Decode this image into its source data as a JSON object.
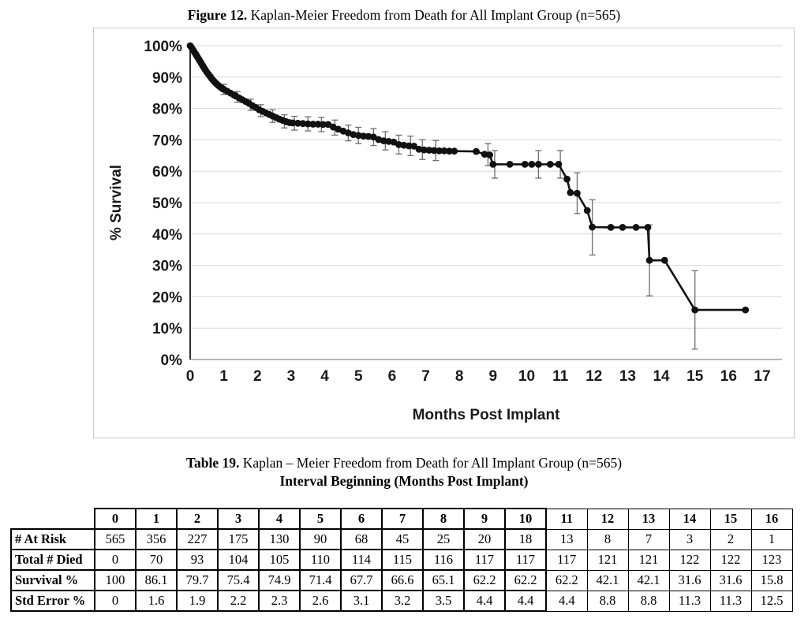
{
  "figure": {
    "label": "Figure 12.",
    "title": " Kaplan-Meier Freedom from Death for All Implant Group (n=565)"
  },
  "chart_data": {
    "type": "line",
    "title": "Figure 12. Kaplan-Meier Freedom from Death for All Implant Group (n=565)",
    "xlabel": "Months Post Implant",
    "ylabel": "% Survival",
    "xlim": [
      0,
      17
    ],
    "ylim": [
      0,
      100
    ],
    "grid": "horizontal",
    "legend": "none",
    "xticks": [
      "0",
      "1",
      "2",
      "3",
      "4",
      "5",
      "6",
      "7",
      "8",
      "9",
      "10",
      "11",
      "12",
      "13",
      "14",
      "15",
      "16",
      "17"
    ],
    "yticks": [
      {
        "v": 0,
        "label": "0%"
      },
      {
        "v": 10,
        "label": "10%"
      },
      {
        "v": 20,
        "label": "20%"
      },
      {
        "v": 30,
        "label": "30%"
      },
      {
        "v": 40,
        "label": "40%"
      },
      {
        "v": 50,
        "label": "50%"
      },
      {
        "v": 60,
        "label": "60%"
      },
      {
        "v": 70,
        "label": "70%"
      },
      {
        "v": 80,
        "label": "80%"
      },
      {
        "v": 90,
        "label": "90%"
      },
      {
        "v": 100,
        "label": "100%"
      }
    ],
    "monthly_summary": {
      "months": [
        0,
        1,
        2,
        3,
        4,
        5,
        6,
        7,
        8,
        9,
        10,
        11,
        12,
        13,
        14,
        15,
        16
      ],
      "survival_pct": [
        100,
        86.1,
        79.7,
        75.4,
        74.9,
        71.4,
        67.7,
        66.6,
        65.1,
        62.2,
        62.2,
        62.2,
        42.1,
        42.1,
        31.6,
        31.6,
        15.8
      ],
      "std_error_pct": [
        0,
        1.6,
        1.9,
        2.2,
        2.3,
        2.6,
        3.1,
        3.2,
        3.5,
        4.4,
        4.4,
        4.4,
        8.8,
        8.8,
        11.3,
        11.3,
        12.5
      ]
    },
    "series": [
      {
        "name": "Freedom from Death (All Implant Group)",
        "color": "#111111",
        "marker": "circle",
        "points": [
          [
            0,
            100
          ],
          [
            0.05,
            99.3
          ],
          [
            0.09,
            98.6
          ],
          [
            0.13,
            97.9
          ],
          [
            0.17,
            97.2
          ],
          [
            0.21,
            96.5
          ],
          [
            0.25,
            95.8
          ],
          [
            0.29,
            95.1
          ],
          [
            0.33,
            94.4
          ],
          [
            0.37,
            93.7
          ],
          [
            0.41,
            93
          ],
          [
            0.45,
            92.3
          ],
          [
            0.5,
            91.5
          ],
          [
            0.55,
            90.8
          ],
          [
            0.6,
            90.1
          ],
          [
            0.65,
            89.4
          ],
          [
            0.7,
            88.8
          ],
          [
            0.75,
            88.2
          ],
          [
            0.8,
            87.7
          ],
          [
            0.85,
            87.2
          ],
          [
            0.9,
            86.8
          ],
          [
            0.95,
            86.4
          ],
          [
            1,
            86.1
          ],
          [
            1.1,
            85.5
          ],
          [
            1.2,
            84.9
          ],
          [
            1.3,
            84.3
          ],
          [
            1.35,
            84
          ],
          [
            1.45,
            83.4
          ],
          [
            1.55,
            82.8
          ],
          [
            1.65,
            82.2
          ],
          [
            1.75,
            81.6
          ],
          [
            1.85,
            80.9
          ],
          [
            1.95,
            80.3
          ],
          [
            2.05,
            79.6
          ],
          [
            2.15,
            79.1
          ],
          [
            2.25,
            78.6
          ],
          [
            2.35,
            78.1
          ],
          [
            2.45,
            77.6
          ],
          [
            2.55,
            77.1
          ],
          [
            2.65,
            76.6
          ],
          [
            2.75,
            76.2
          ],
          [
            2.85,
            75.8
          ],
          [
            2.95,
            75.5
          ],
          [
            3.05,
            75.4
          ],
          [
            3.2,
            75.3
          ],
          [
            3.35,
            75.2
          ],
          [
            3.5,
            75.1
          ],
          [
            3.65,
            75
          ],
          [
            3.8,
            75
          ],
          [
            3.95,
            74.9
          ],
          [
            4.1,
            74.9
          ],
          [
            4.25,
            74.1
          ],
          [
            4.4,
            73.4
          ],
          [
            4.55,
            72.8
          ],
          [
            4.7,
            72.2
          ],
          [
            4.85,
            71.7
          ],
          [
            5,
            71.4
          ],
          [
            5.15,
            71.2
          ],
          [
            5.3,
            71.1
          ],
          [
            5.45,
            70.9
          ],
          [
            5.6,
            70.1
          ],
          [
            5.75,
            69.7
          ],
          [
            5.9,
            69.5
          ],
          [
            6.05,
            69.3
          ],
          [
            6.2,
            68.5
          ],
          [
            6.35,
            68.3
          ],
          [
            6.5,
            68.1
          ],
          [
            6.65,
            68
          ],
          [
            6.8,
            67
          ],
          [
            6.95,
            66.8
          ],
          [
            7.1,
            66.7
          ],
          [
            7.25,
            66.6
          ],
          [
            7.4,
            66.5
          ],
          [
            7.55,
            66.5
          ],
          [
            7.7,
            66.4
          ],
          [
            7.85,
            66.4
          ],
          [
            8.5,
            66.3
          ],
          [
            8.75,
            65.4
          ],
          [
            8.9,
            65.2
          ],
          [
            9,
            62.2
          ],
          [
            9.5,
            62.2
          ],
          [
            9.95,
            62.2
          ],
          [
            10.15,
            62.2
          ],
          [
            10.35,
            62.2
          ],
          [
            10.7,
            62.2
          ],
          [
            10.95,
            62.2
          ],
          [
            11.2,
            57.5
          ],
          [
            11.3,
            53.2
          ],
          [
            11.5,
            53
          ],
          [
            11.8,
            47.5
          ],
          [
            11.95,
            42.2
          ],
          [
            12.5,
            42.1
          ],
          [
            12.85,
            42.1
          ],
          [
            13.25,
            42.1
          ],
          [
            13.6,
            42.1
          ],
          [
            13.65,
            31.6
          ],
          [
            14.1,
            31.6
          ],
          [
            15,
            15.8
          ],
          [
            16.5,
            15.8
          ]
        ]
      }
    ],
    "error_bars": [
      {
        "x": 1,
        "y": 86.1,
        "e": 1.6
      },
      {
        "x": 1.4,
        "y": 83.7,
        "e": 1.7
      },
      {
        "x": 1.8,
        "y": 81.2,
        "e": 1.8
      },
      {
        "x": 2.1,
        "y": 79.3,
        "e": 1.9
      },
      {
        "x": 2.45,
        "y": 77.6,
        "e": 2
      },
      {
        "x": 2.8,
        "y": 75.9,
        "e": 2.1
      },
      {
        "x": 3.1,
        "y": 75.3,
        "e": 2.2
      },
      {
        "x": 3.5,
        "y": 75.1,
        "e": 2.25
      },
      {
        "x": 3.9,
        "y": 74.9,
        "e": 2.3
      },
      {
        "x": 4.3,
        "y": 73.9,
        "e": 2.4
      },
      {
        "x": 4.7,
        "y": 72.2,
        "e": 2.5
      },
      {
        "x": 5,
        "y": 71.4,
        "e": 2.6
      },
      {
        "x": 5.45,
        "y": 70.9,
        "e": 2.7
      },
      {
        "x": 5.8,
        "y": 69.7,
        "e": 2.9
      },
      {
        "x": 6.2,
        "y": 68.5,
        "e": 3
      },
      {
        "x": 6.55,
        "y": 68.1,
        "e": 3.1
      },
      {
        "x": 6.9,
        "y": 66.9,
        "e": 3.15
      },
      {
        "x": 7.3,
        "y": 66.6,
        "e": 3.2
      },
      {
        "x": 8.85,
        "y": 65.3,
        "e": 3.5
      },
      {
        "x": 9.05,
        "y": 62.2,
        "e": 4.4
      },
      {
        "x": 10.35,
        "y": 62.2,
        "e": 4.4
      },
      {
        "x": 11,
        "y": 62.2,
        "e": 4.4
      },
      {
        "x": 11.5,
        "y": 53,
        "e": 6.5
      },
      {
        "x": 11.95,
        "y": 42.1,
        "e": 8.8
      },
      {
        "x": 13.65,
        "y": 31.6,
        "e": 11.3
      },
      {
        "x": 15,
        "y": 15.8,
        "e": 12.5
      }
    ]
  },
  "table": {
    "caption_label": "Table 19.",
    "caption": " Kaplan – Meier Freedom from Death for All Implant Group (n=565)",
    "subcaption": "Interval Beginning (Months Post Implant)",
    "columns": [
      "0",
      "1",
      "2",
      "3",
      "4",
      "5",
      "6",
      "7",
      "8",
      "9",
      "10",
      "11",
      "12",
      "13",
      "14",
      "15",
      "16"
    ],
    "rows": [
      {
        "label": "# At Risk",
        "values": [
          "565",
          "356",
          "227",
          "175",
          "130",
          "90",
          "68",
          "45",
          "25",
          "20",
          "18",
          "13",
          "8",
          "7",
          "3",
          "2",
          "1"
        ]
      },
      {
        "label": "Total # Died",
        "values": [
          "0",
          "70",
          "93",
          "104",
          "105",
          "110",
          "114",
          "115",
          "116",
          "117",
          "117",
          "117",
          "121",
          "121",
          "122",
          "122",
          "123"
        ]
      },
      {
        "label": "Survival %",
        "values": [
          "100",
          "86.1",
          "79.7",
          "75.4",
          "74.9",
          "71.4",
          "67.7",
          "66.6",
          "65.1",
          "62.2",
          "62.2",
          "62.2",
          "42.1",
          "42.1",
          "31.6",
          "31.6",
          "15.8"
        ]
      },
      {
        "label": "Std Error %",
        "values": [
          "0",
          "1.6",
          "1.9",
          "2.2",
          "2.3",
          "2.6",
          "3.1",
          "3.2",
          "3.5",
          "4.4",
          "4.4",
          "4.4",
          "8.8",
          "8.8",
          "11.3",
          "11.3",
          "12.5"
        ]
      }
    ]
  },
  "colors": {
    "grid": "#d9d9d9",
    "x_axis": "#8c8c8c",
    "y_axis": "#1a1a1a",
    "line": "#111111",
    "error_bar": "#6e6e6e",
    "frame_border": "#c9c9c9"
  }
}
